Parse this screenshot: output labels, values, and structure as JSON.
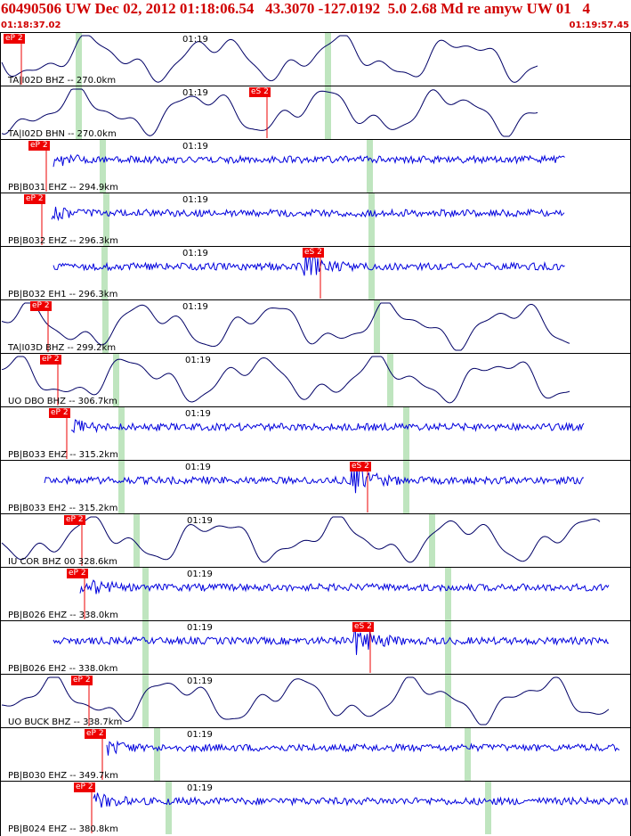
{
  "header": {
    "title": "60490506 UW Dec 02, 2012 01:18:06.54   43.3070 -127.0192  5.0 2.68 Md re amyw UW 01   4",
    "start_time": "01:18:37.02",
    "end_time": "01:19:57.45"
  },
  "colors": {
    "header_text": "#d00000",
    "pick_flag": "#ee0000",
    "green_marker": "#bfe5bf",
    "trace_broadband": "#000066",
    "trace_short_period": "#0000dd"
  },
  "minute_tick_label": "01:19",
  "traces": [
    {
      "station": "TA|I02D BHZ -- 270.0km",
      "type": "broadband",
      "pick": "eP 2",
      "pick2": ""
    },
    {
      "station": "TA|I02D BHN -- 270.0km",
      "type": "broadband",
      "pick": "",
      "pick2": "eS 2"
    },
    {
      "station": "PB|B031 EHZ -- 294.9km",
      "type": "short",
      "pick": "eP 2",
      "pick2": ""
    },
    {
      "station": "PB|B032 EHZ -- 296.3km",
      "type": "short",
      "pick": "eP 2",
      "pick2": ""
    },
    {
      "station": "PB|B032 EH1 -- 296.3km",
      "type": "short",
      "pick": "",
      "pick2": "eS 2"
    },
    {
      "station": "TA|I03D BHZ -- 299.2km",
      "type": "broadband",
      "pick": "eP 2",
      "pick2": ""
    },
    {
      "station": "UO DBO BHZ -- 306.7km",
      "type": "broadband",
      "pick": "eP 2",
      "pick2": ""
    },
    {
      "station": "PB|B033 EHZ -- 315.2km",
      "type": "short",
      "pick": "eP 2",
      "pick2": ""
    },
    {
      "station": "PB|B033 EH2 -- 315.2km",
      "type": "short",
      "pick": "",
      "pick2": "eS 2"
    },
    {
      "station": "IU COR BHZ 00 328.6km",
      "type": "broadband",
      "pick": "eP 2",
      "pick2": ""
    },
    {
      "station": "PB|B026 EHZ -- 338.0km",
      "type": "short",
      "pick": "eP 2",
      "pick2": ""
    },
    {
      "station": "PB|B026 EH2 -- 338.0km",
      "type": "short",
      "pick": "",
      "pick2": "eS 2"
    },
    {
      "station": "UO BUCK BHZ -- 338.7km",
      "type": "broadband",
      "pick": "eP 2",
      "pick2": ""
    },
    {
      "station": "PB|B030 EHZ -- 349.7km",
      "type": "short",
      "pick": "eP 2",
      "pick2": ""
    },
    {
      "station": "PB|B024 EHZ -- 380.8km",
      "type": "short",
      "pick": "eP 2",
      "pick2": ""
    }
  ]
}
